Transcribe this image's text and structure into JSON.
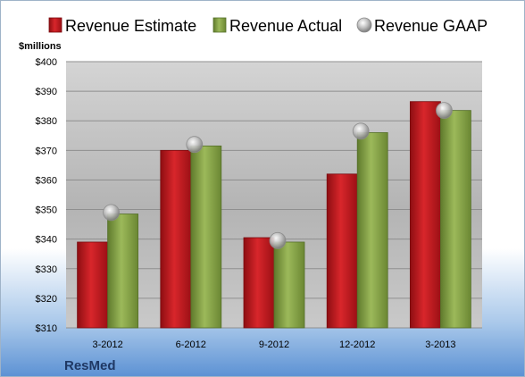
{
  "chart_data": {
    "type": "bar",
    "categories": [
      "3-2012",
      "6-2012",
      "9-2012",
      "12-2012",
      "3-2013"
    ],
    "series": [
      {
        "name": "Revenue Estimate",
        "type": "bar",
        "color": "#c8191e",
        "values": [
          339,
          370,
          340.5,
          362,
          386.5
        ]
      },
      {
        "name": "Revenue Actual",
        "type": "bar",
        "color": "#8aa64a",
        "values": [
          348.5,
          371.5,
          339,
          376,
          383.5
        ]
      },
      {
        "name": "Revenue GAAP",
        "type": "marker",
        "color": "#b9b9b9",
        "values": [
          349,
          372,
          339.5,
          376.5,
          383.5
        ]
      }
    ],
    "ylim": [
      310,
      400
    ],
    "yticks": [
      310,
      320,
      330,
      340,
      350,
      360,
      370,
      380,
      390,
      400
    ],
    "ytick_labels": [
      "$310",
      "$320",
      "$330",
      "$340",
      "$350",
      "$360",
      "$370",
      "$380",
      "$390",
      "$400"
    ],
    "ylabel": "$millions",
    "xlabel": "",
    "grid": true,
    "legend": "top"
  },
  "company": "ResMed"
}
